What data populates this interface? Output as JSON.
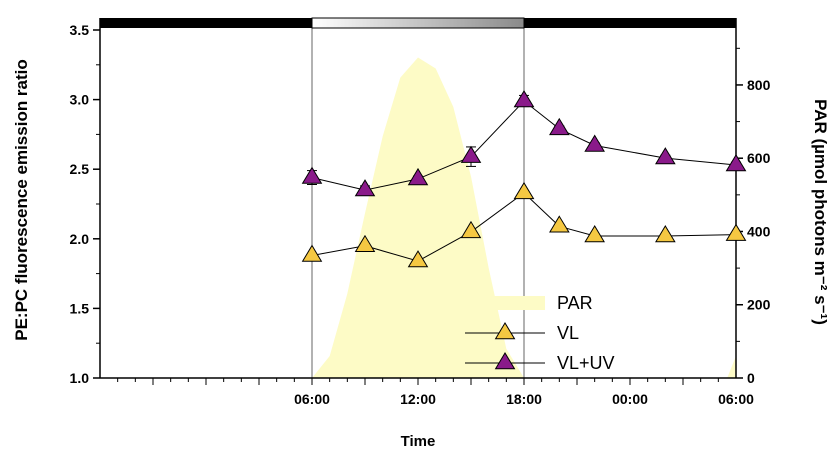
{
  "chart_data": {
    "type": "line",
    "xlabel": "Time",
    "ylabel": "PE:PC fluorescence emission ratio",
    "ylabel_right": "PAR (µmol photons m⁻² s⁻¹)",
    "x_ticks": [
      "06:00",
      "12:00",
      "18:00",
      "00:00",
      "06:00"
    ],
    "x_range_hours": [
      -6,
      30
    ],
    "ylim": [
      1.0,
      3.5
    ],
    "y_ticks": [
      "1.0",
      "1.5",
      "2.0",
      "2.5",
      "3.0",
      "3.5"
    ],
    "y2lim": [
      0,
      950
    ],
    "y2_ticks": [
      "0",
      "200",
      "400",
      "600",
      "800"
    ],
    "light_bar": {
      "dark_until_h": 6,
      "gradient_until_h": 18,
      "dark_after_h": 18
    },
    "legend_position": "center-right",
    "series": [
      {
        "name": "PAR",
        "kind": "area",
        "color": "#fdfbc6",
        "axis": "right",
        "points": [
          [
            6,
            0
          ],
          [
            7,
            60
          ],
          [
            8,
            230
          ],
          [
            9,
            450
          ],
          [
            10,
            660
          ],
          [
            11,
            820
          ],
          [
            12,
            875
          ],
          [
            13,
            845
          ],
          [
            14,
            740
          ],
          [
            15,
            550
          ],
          [
            16,
            300
          ],
          [
            17,
            80
          ],
          [
            18,
            0
          ],
          [
            29.5,
            0
          ],
          [
            30,
            60
          ],
          [
            31,
            230
          ],
          [
            32,
            450
          ]
        ]
      },
      {
        "name": "VL",
        "kind": "line-markers",
        "color": "#f5c842",
        "x_hours": [
          6,
          9,
          12,
          15,
          18,
          20,
          22,
          26,
          30
        ],
        "values": [
          1.88,
          1.95,
          1.84,
          2.05,
          2.33,
          2.09,
          2.02,
          2.02,
          2.03
        ]
      },
      {
        "name": "VL+UV",
        "kind": "line-markers",
        "color": "#8a1a8a",
        "x_hours": [
          6,
          9,
          12,
          15,
          18,
          20,
          22,
          26,
          30
        ],
        "values": [
          2.44,
          2.35,
          2.43,
          2.59,
          2.99,
          2.79,
          2.67,
          2.58,
          2.53
        ],
        "errors": [
          0.05,
          0.03,
          0.02,
          0.07,
          0.04,
          0.02,
          0.02,
          0.02,
          0.02
        ]
      }
    ]
  }
}
